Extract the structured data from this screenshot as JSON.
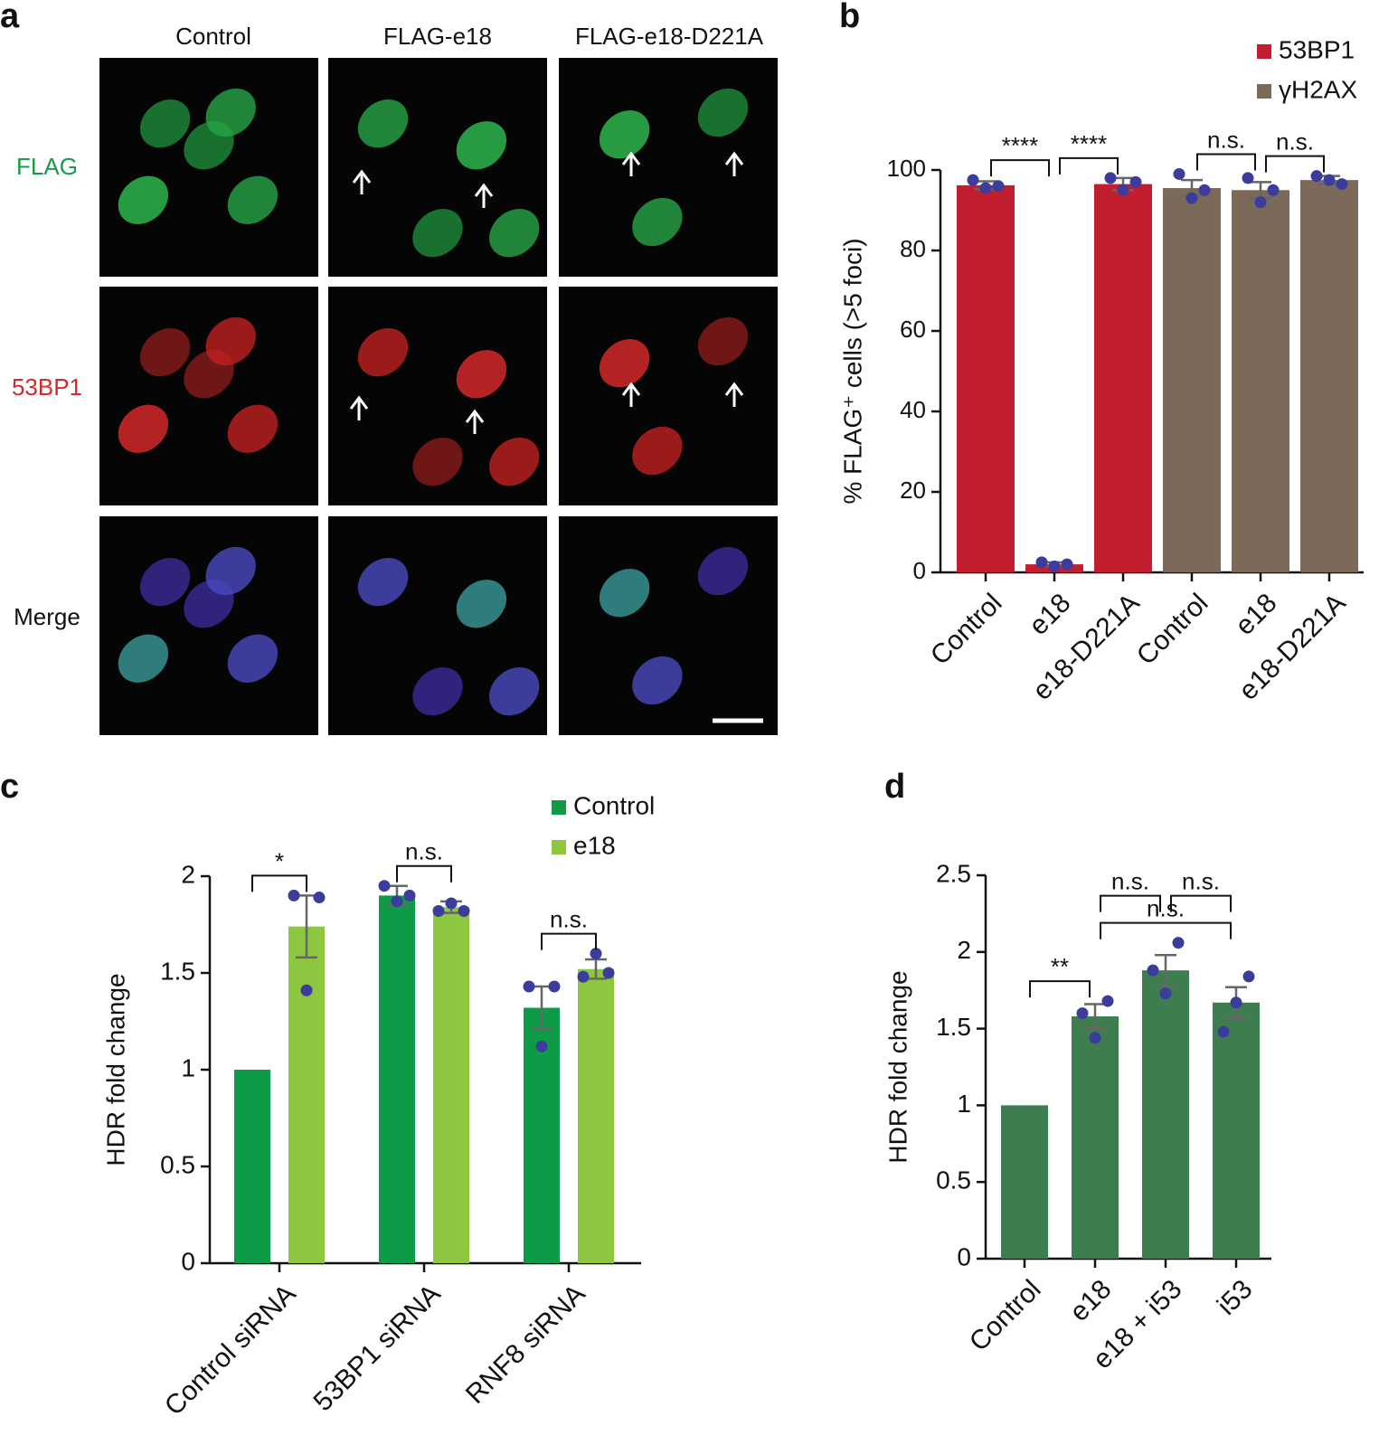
{
  "panel_a": {
    "panel": "a",
    "columns": [
      "Control",
      "FLAG-e18",
      "FLAG-e18-D221A"
    ],
    "rows": [
      "FLAG",
      "53BP1",
      "Merge"
    ]
  },
  "chart_data": [
    {
      "type": "bar",
      "panel": "b",
      "ylabel": "% FLAG⁺ cells (>5 foci)",
      "categories": [
        "Control",
        "e18",
        "e18-D221A",
        "Control",
        "e18",
        "e18-D221A"
      ],
      "series": [
        {
          "name": "53BP1",
          "color": "#c11f2f",
          "values": [
            96.2,
            2,
            96.5,
            null,
            null,
            null
          ],
          "errors": [
            1,
            0.5,
            1.5,
            null,
            null,
            null
          ],
          "points": [
            [
              97.5,
              95.5,
              96
            ],
            [
              2.5,
              1.5,
              2
            ],
            [
              98,
              95,
              97
            ],
            null,
            null,
            null
          ]
        },
        {
          "name": "γH2AX",
          "color": "#7b6a59",
          "values": [
            null,
            null,
            null,
            95.5,
            95,
            97.5
          ],
          "errors": [
            null,
            null,
            null,
            2,
            2,
            1
          ],
          "points": [
            null,
            null,
            null,
            [
              99,
              93,
              95
            ],
            [
              98,
              92,
              95
            ],
            [
              98.5,
              97.5,
              96.5
            ]
          ]
        }
      ],
      "point_color": "#3b3c9c",
      "ylim": [
        0,
        100
      ],
      "yticks": [
        0,
        20,
        40,
        60,
        80,
        100
      ],
      "legend": "upper right",
      "comparisons": [
        {
          "between": [
            0,
            1
          ],
          "label": "****"
        },
        {
          "between": [
            1,
            2
          ],
          "label": "****"
        },
        {
          "between": [
            3,
            4
          ],
          "label": "n.s."
        },
        {
          "between": [
            4,
            5
          ],
          "label": "n.s."
        }
      ]
    },
    {
      "type": "bar",
      "panel": "c",
      "ylabel": "HDR fold change",
      "categories": [
        "Control siRNA",
        "53BP1 siRNA",
        "RNF8 siRNA"
      ],
      "series": [
        {
          "name": "Control",
          "color": "#0e9b48",
          "values": [
            1,
            1.9,
            1.32
          ],
          "errors": [
            null,
            0.05,
            0.11
          ],
          "points": [
            null,
            [
              1.95,
              1.87,
              1.9
            ],
            [
              1.43,
              1.12,
              1.43
            ]
          ]
        },
        {
          "name": "e18",
          "color": "#8dc63f",
          "values": [
            1.74,
            1.84,
            1.52
          ],
          "errors": [
            0.16,
            0.03,
            0.05
          ],
          "points": [
            [
              1.9,
              1.41,
              1.89
            ],
            [
              1.82,
              1.86,
              1.82
            ],
            [
              1.48,
              1.6,
              1.5
            ]
          ]
        }
      ],
      "point_color": "#3b3c9c",
      "ylim": [
        0,
        2
      ],
      "yticks": [
        0,
        0.5,
        1,
        1.5,
        2
      ],
      "legend": "upper right",
      "comparisons": [
        {
          "category": 0,
          "label": "*"
        },
        {
          "category": 1,
          "label": "n.s."
        },
        {
          "category": 2,
          "label": "n.s."
        }
      ]
    },
    {
      "type": "bar",
      "panel": "d",
      "ylabel": "HDR fold change",
      "categories": [
        "Control",
        "e18",
        "e18 + i53",
        "i53"
      ],
      "values": [
        1,
        1.58,
        1.88,
        1.67
      ],
      "errors": [
        null,
        0.08,
        0.1,
        0.1
      ],
      "points": [
        null,
        [
          1.6,
          1.44,
          1.68
        ],
        [
          1.88,
          1.73,
          2.06
        ],
        [
          1.48,
          1.67,
          1.84
        ]
      ],
      "color": "#3d7d4f",
      "point_color": "#3b3c9c",
      "ylim": [
        0,
        2.5
      ],
      "yticks": [
        0,
        0.5,
        1,
        1.5,
        2,
        2.5
      ],
      "comparisons": [
        {
          "between": [
            0,
            1
          ],
          "label": "**"
        },
        {
          "between": [
            1,
            3
          ],
          "label": "n.s."
        },
        {
          "between": [
            3,
            2
          ],
          "label": "n.s."
        },
        {
          "between": [
            1,
            2
          ],
          "label": "n.s."
        }
      ]
    }
  ]
}
